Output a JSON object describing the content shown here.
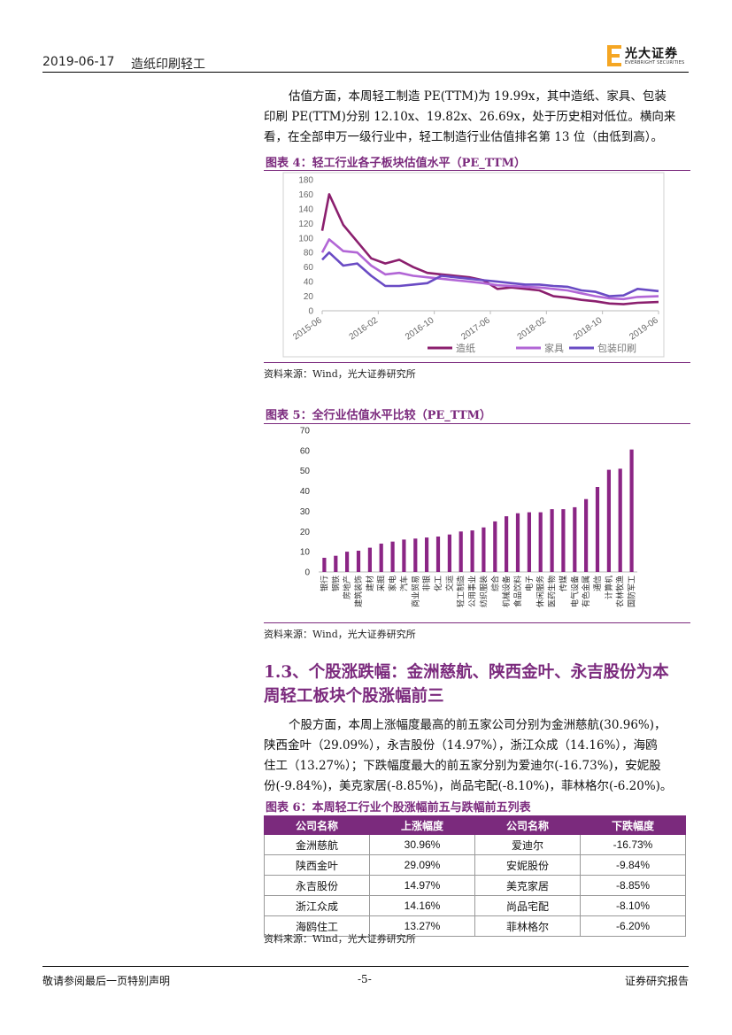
{
  "header": {
    "date": "2019-06-17",
    "industry": "造纸印刷轻工",
    "logo_name": "光大证券",
    "logo_en": "EVERBRIGHT SECURITIES"
  },
  "para1": {
    "lines": [
      "估值方面，本周轻工制造 PE(TTM)为 19.99x，其中造纸、家具、包装",
      "印刷 PE(TTM)分别 12.10x、19.82x、26.69x，处于历史相对低位。横向来",
      "看，在全部申万一级行业中，轻工制造行业估值排名第 13 位（由低到高）。"
    ]
  },
  "fig4": {
    "title": "图表 4：轻工行业各子板块估值水平（PE_TTM）",
    "source": "资料来源：Wind，光大证券研究所"
  },
  "fig5": {
    "title": "图表 5：全行业估值水平比较（PE_TTM）",
    "source": "资料来源：Wind，光大证券研究所"
  },
  "section": {
    "line1": "1.3、个股涨跌幅：金洲慈航、陕西金叶、永吉股份为本",
    "line2": "周轻工板块个股涨幅前三"
  },
  "para2": {
    "lines": [
      "个股方面，本周上涨幅度最高的前五家公司分别为金洲慈航(30.96%)，",
      "陕西金叶（29.09%），永吉股份（14.97%），浙江众成（14.16%），海鸥",
      "住工（13.27%）；下跌幅度最大的前五家分别为爱迪尔(-16.73%)，安妮股",
      "份(-9.84%)，美克家居(-8.85%)，尚品宅配(-8.10%)，菲林格尔(-6.20%)。"
    ]
  },
  "fig6": {
    "title": "图表 6：本周轻工行业个股涨幅前五与跌幅前五列表",
    "source": "资料来源：Wind，光大证券研究所",
    "headers": [
      "公司名称",
      "上涨幅度",
      "公司名称",
      "下跌幅度"
    ],
    "rows": [
      [
        "金洲慈航",
        "30.96%",
        "爱迪尔",
        "-16.73%"
      ],
      [
        "陕西金叶",
        "29.09%",
        "安妮股份",
        "-9.84%"
      ],
      [
        "永吉股份",
        "14.97%",
        "美克家居",
        "-8.85%"
      ],
      [
        "浙江众成",
        "14.16%",
        "尚品宅配",
        "-8.10%"
      ],
      [
        "海鸥住工",
        "13.27%",
        "菲林格尔",
        "-6.20%"
      ]
    ]
  },
  "footer": {
    "left": "敬请参阅最后一页特别声明",
    "center": "-5-",
    "right": "证券研究报告"
  },
  "colors": {
    "accent": "#7b2a7d",
    "zaozhi": "#8b1f6e",
    "jiaju": "#b266d6",
    "baozhuang": "#6a4bc4",
    "bar": "#8b2585"
  },
  "chart_data": [
    {
      "type": "line",
      "ylim": [
        0,
        180
      ],
      "yticks": [
        0,
        20,
        40,
        60,
        80,
        100,
        120,
        140,
        160,
        180
      ],
      "x_ticks": [
        "2015-06",
        "2016-02",
        "2016-10",
        "2017-06",
        "2018-02",
        "2018-10",
        "2019-06"
      ],
      "legend_position": "bottom",
      "series": [
        {
          "name": "造纸",
          "x": [
            "2015-06",
            "2015-07",
            "2015-09",
            "2015-11",
            "2016-01",
            "2016-03",
            "2016-05",
            "2016-07",
            "2016-09",
            "2016-11",
            "2017-01",
            "2017-03",
            "2017-05",
            "2017-07",
            "2017-09",
            "2017-11",
            "2018-01",
            "2018-03",
            "2018-05",
            "2018-07",
            "2018-09",
            "2018-11",
            "2019-01",
            "2019-03",
            "2019-06"
          ],
          "values": [
            110,
            160,
            118,
            95,
            72,
            65,
            70,
            60,
            52,
            50,
            48,
            46,
            42,
            30,
            32,
            30,
            28,
            20,
            18,
            15,
            13,
            10,
            9,
            11,
            12
          ]
        },
        {
          "name": "家具",
          "x": [
            "2015-06",
            "2015-07",
            "2015-09",
            "2015-11",
            "2016-01",
            "2016-03",
            "2016-05",
            "2016-07",
            "2016-09",
            "2016-11",
            "2017-01",
            "2017-03",
            "2017-05",
            "2017-07",
            "2017-09",
            "2017-11",
            "2018-01",
            "2018-03",
            "2018-05",
            "2018-07",
            "2018-09",
            "2018-11",
            "2019-01",
            "2019-03",
            "2019-06"
          ],
          "values": [
            80,
            98,
            82,
            80,
            62,
            50,
            52,
            48,
            46,
            44,
            42,
            40,
            38,
            35,
            34,
            33,
            32,
            30,
            28,
            24,
            20,
            17,
            16,
            19,
            20
          ]
        },
        {
          "name": "包装印刷",
          "x": [
            "2015-06",
            "2015-07",
            "2015-09",
            "2015-11",
            "2016-01",
            "2016-03",
            "2016-05",
            "2016-07",
            "2016-09",
            "2016-11",
            "2017-01",
            "2017-03",
            "2017-05",
            "2017-07",
            "2017-09",
            "2017-11",
            "2018-01",
            "2018-03",
            "2018-05",
            "2018-07",
            "2018-09",
            "2018-11",
            "2019-01",
            "2019-03",
            "2019-06"
          ],
          "values": [
            70,
            80,
            62,
            65,
            48,
            34,
            34,
            36,
            38,
            48,
            46,
            44,
            42,
            40,
            38,
            36,
            36,
            34,
            33,
            28,
            26,
            20,
            21,
            30,
            27
          ]
        }
      ]
    },
    {
      "type": "bar",
      "ylim": [
        0,
        70
      ],
      "yticks": [
        0,
        10,
        20,
        30,
        40,
        50,
        60,
        70
      ],
      "categories": [
        "银行",
        "钢铁",
        "房地产",
        "建筑装饰",
        "建筑材料",
        "采掘",
        "家用电器",
        "汽车",
        "商业贸易",
        "非银金融",
        "化工",
        "交通运输",
        "轻工制造",
        "公用事业",
        "纺织服装",
        "综合",
        "机械设备",
        "食品饮料",
        "电子",
        "休闲服务",
        "医药生物",
        "传媒",
        "电气设备",
        "有色金属",
        "通信",
        "计算机",
        "农林牧渔",
        "国防军工"
      ],
      "category_labels": [
        "银行",
        "钢铁",
        "房地产",
        "建筑装饰",
        "建材",
        "采掘",
        "家电",
        "汽车",
        "商业贸易",
        "非银",
        "化工",
        "交运",
        "轻工制造",
        "公用事业",
        "纺织服装",
        "综合",
        "机械设备",
        "食品饮料",
        "电子",
        "休闲服务",
        "医药生物",
        "传媒",
        "电气设备",
        "有色金属",
        "通信",
        "计算机",
        "农林牧渔",
        "国防军工"
      ],
      "values": [
        7,
        8,
        10,
        10.5,
        12,
        14,
        15,
        16,
        16.5,
        17,
        17.5,
        18.5,
        20,
        20.5,
        22,
        25,
        27.5,
        29,
        29.5,
        29.5,
        31,
        31,
        32,
        36,
        42,
        50.5,
        51,
        60.5
      ]
    }
  ]
}
